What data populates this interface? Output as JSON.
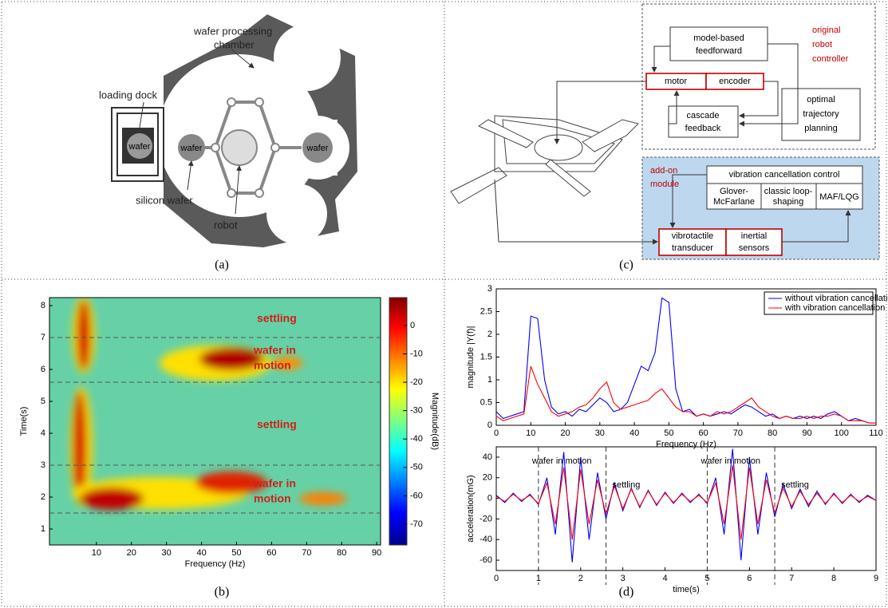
{
  "figure": {
    "captions": [
      "(a)",
      "(b)",
      "(c)",
      "(d)"
    ]
  },
  "diagram_a": {
    "chamber": [
      "wafer processing",
      "chamber"
    ],
    "dock": "loading dock",
    "wafer_labels": [
      "wafer",
      "wafer",
      "wafer"
    ],
    "silicon": "silicon wafer",
    "robot": "robot"
  },
  "diagram_c": {
    "feedforward": [
      "model-based",
      "feedforward"
    ],
    "motor": "motor",
    "encoder": "encoder",
    "feedback": [
      "cascade",
      "feedback"
    ],
    "planning": [
      "optimal",
      "trajectory",
      "planning"
    ],
    "controller": [
      "original",
      "robot",
      "controller"
    ],
    "module": [
      "add-on",
      "module"
    ],
    "vcc": "vibration cancellation control",
    "methods": [
      [
        "Glover-",
        "McFarlane"
      ],
      [
        "classic loop-",
        "shaping"
      ],
      [
        "MAF/LQG"
      ]
    ],
    "transducer": [
      "vibrotactile",
      "transducer"
    ],
    "sensors": [
      "inertial",
      "sensors"
    ]
  },
  "chart_data": [
    {
      "type": "heatmap",
      "xlabel": "Frequency (Hz)",
      "ylabel": "Time(s)",
      "xlim": [
        -3.4,
        91.1
      ],
      "ylim": [
        0.5,
        8.25
      ],
      "xticks": [
        10,
        20,
        30,
        40,
        50,
        60,
        70,
        80,
        90
      ],
      "yticks": [
        1,
        2,
        3,
        4,
        5,
        6,
        7,
        8
      ],
      "colorbar": {
        "label": "Magnitude(dB)",
        "lim": [
          -77.3,
          9.8
        ],
        "ticks": [
          0,
          -10,
          -20,
          -30,
          -40,
          -50,
          -60,
          -70
        ]
      },
      "hlines": [
        1.5,
        3,
        5.6,
        7
      ],
      "annotations": [
        [
          "settling"
        ],
        [
          "wafer in",
          "motion"
        ],
        [
          "settling"
        ],
        [
          "wafer in",
          "motion"
        ]
      ]
    },
    {
      "type": "line",
      "xlabel": "Frequency (Hz)",
      "ylabel": "magnitude |Y(f)|",
      "xlim": [
        0,
        110
      ],
      "ylim": [
        0,
        3
      ],
      "xticks": [
        0,
        10,
        20,
        30,
        40,
        50,
        60,
        70,
        80,
        90,
        100,
        110
      ],
      "yticks": [
        0,
        0.5,
        1,
        1.5,
        2,
        2.5,
        3
      ],
      "legend": "upper right",
      "x": [
        0,
        2,
        4,
        6,
        8,
        10,
        12,
        14,
        16,
        18,
        20,
        22,
        24,
        26,
        28,
        30,
        32,
        34,
        36,
        38,
        40,
        42,
        44,
        46,
        48,
        50,
        52,
        54,
        56,
        58,
        60,
        62,
        64,
        66,
        68,
        70,
        72,
        74,
        76,
        78,
        80,
        82,
        84,
        86,
        88,
        90,
        92,
        94,
        96,
        98,
        100,
        102,
        104,
        106,
        108,
        110
      ],
      "series": [
        {
          "name": "without vibration cancellation",
          "color": "#0000ff",
          "values": [
            0.3,
            0.15,
            0.2,
            0.25,
            0.3,
            2.4,
            2.35,
            1.0,
            0.4,
            0.25,
            0.3,
            0.2,
            0.35,
            0.3,
            0.45,
            0.6,
            0.5,
            0.3,
            0.35,
            0.5,
            0.9,
            1.3,
            1.2,
            1.6,
            2.8,
            2.7,
            0.8,
            0.3,
            0.35,
            0.2,
            0.25,
            0.2,
            0.25,
            0.3,
            0.25,
            0.35,
            0.45,
            0.4,
            0.3,
            0.2,
            0.25,
            0.15,
            0.2,
            0.15,
            0.2,
            0.15,
            0.2,
            0.15,
            0.25,
            0.3,
            0.2,
            0.1,
            0.15,
            0.1,
            0.05,
            0.05
          ]
        },
        {
          "name": "with vibration cancellation",
          "color": "#ff0000",
          "values": [
            0.2,
            0.1,
            0.15,
            0.2,
            0.25,
            1.3,
            0.9,
            0.6,
            0.3,
            0.2,
            0.25,
            0.3,
            0.4,
            0.45,
            0.6,
            0.8,
            0.95,
            0.5,
            0.35,
            0.4,
            0.45,
            0.5,
            0.55,
            0.7,
            0.8,
            0.6,
            0.4,
            0.3,
            0.3,
            0.2,
            0.25,
            0.2,
            0.3,
            0.25,
            0.3,
            0.4,
            0.5,
            0.6,
            0.4,
            0.3,
            0.2,
            0.15,
            0.2,
            0.15,
            0.15,
            0.2,
            0.15,
            0.2,
            0.2,
            0.25,
            0.2,
            0.1,
            0.1,
            0.1,
            0.05,
            0.05
          ]
        }
      ]
    },
    {
      "type": "line",
      "xlabel": "time(s)",
      "ylabel": "acceleration(mG)",
      "xlim": [
        0,
        9
      ],
      "ylim": [
        -70,
        50
      ],
      "xticks": [
        0,
        1,
        2,
        3,
        4,
        5,
        6,
        7,
        8,
        9
      ],
      "yticks": [
        -60,
        -40,
        -20,
        0,
        20,
        40
      ],
      "vlines": [
        1,
        2.6,
        5,
        6.6
      ],
      "annotations": [
        "wafer in motion",
        "settling",
        "wafer in motion",
        "settling"
      ],
      "x": [
        0,
        0.2,
        0.4,
        0.6,
        0.8,
        1,
        1.2,
        1.4,
        1.6,
        1.8,
        2,
        2.2,
        2.4,
        2.6,
        2.8,
        3,
        3.2,
        3.4,
        3.6,
        3.8,
        4,
        4.2,
        4.4,
        4.6,
        4.8,
        5,
        5.2,
        5.4,
        5.6,
        5.8,
        6,
        6.2,
        6.4,
        6.6,
        6.8,
        7,
        7.2,
        7.4,
        7.6,
        7.8,
        8,
        8.2,
        8.4,
        8.6,
        8.8,
        9
      ],
      "series": [
        {
          "color": "#0000ff",
          "values": [
            3,
            -4,
            5,
            -3,
            4,
            -6,
            20,
            -35,
            45,
            -62,
            40,
            -40,
            25,
            -20,
            15,
            -12,
            10,
            -9,
            8,
            -7,
            6,
            -5,
            5,
            -4,
            4,
            -5,
            20,
            -35,
            48,
            -60,
            40,
            -35,
            25,
            -18,
            14,
            -10,
            9,
            -8,
            7,
            -6,
            5,
            -5,
            4,
            -4,
            3,
            -2
          ]
        },
        {
          "color": "#ff0000",
          "values": [
            2,
            -3,
            4,
            -2,
            3,
            -5,
            15,
            -25,
            30,
            -40,
            28,
            -25,
            18,
            -15,
            12,
            -10,
            9,
            -8,
            7,
            -6,
            5,
            -4,
            4,
            -3,
            3,
            -4,
            15,
            -25,
            32,
            -40,
            30,
            -25,
            18,
            -14,
            10,
            -8,
            7,
            -6,
            5,
            -5,
            4,
            -4,
            3,
            -3,
            2,
            -2
          ]
        }
      ]
    }
  ]
}
